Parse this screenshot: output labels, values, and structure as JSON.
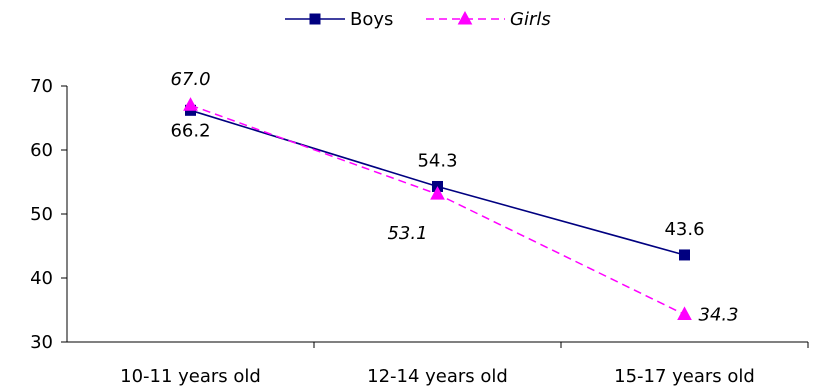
{
  "chart_data": {
    "type": "line",
    "categories": [
      "10-11 years old",
      "12-14 years old",
      "15-17 years old"
    ],
    "series": [
      {
        "name": "Boys",
        "values": [
          66.2,
          54.3,
          43.6
        ],
        "labels": [
          "66.2",
          "54.3",
          "43.6"
        ],
        "color": "#000080",
        "line_style": "solid",
        "marker": "square",
        "label_style": "normal"
      },
      {
        "name": "Girls",
        "values": [
          67.0,
          53.1,
          34.3
        ],
        "labels": [
          "67.0",
          "53.1",
          "34.3"
        ],
        "color": "#ff00ff",
        "line_style": "dashed",
        "marker": "triangle",
        "label_style": "italic"
      }
    ],
    "ylim": [
      30,
      70
    ],
    "yticks": [
      30,
      40,
      50,
      60,
      70
    ],
    "ytick_labels": [
      "30",
      "40",
      "50",
      "60",
      "70"
    ],
    "grid": false,
    "legend_position": "top-center"
  }
}
